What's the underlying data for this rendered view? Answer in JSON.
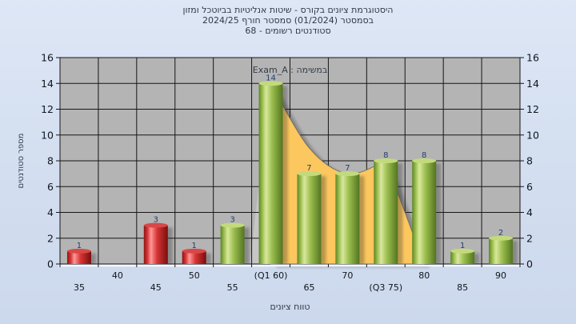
{
  "chart_data": {
    "type": "bar",
    "title_lines": [
      "היסטוגרמת ציונים בקורס - שיטות אנליטיות בביוטכל ומזון",
      "בסמסטר (01/2024) סמסטר חורף 2024/25",
      "סטודנטים רשומים - 68"
    ],
    "legend": "במשימה : Exam_A",
    "legend_position": "top-center",
    "xlabel": "טווח ציונים",
    "ylabel": "מספר סטודנטים",
    "categories": [
      "35",
      "40",
      "45",
      "50",
      "55",
      "(Q1 60)",
      "65",
      "70",
      "(Q3 75)",
      "80",
      "85",
      "90"
    ],
    "series": [
      {
        "name": "Exam_A",
        "type": "column",
        "values": [
          1,
          0,
          3,
          1,
          3,
          14,
          7,
          7,
          8,
          8,
          1,
          2
        ],
        "bar_colors": [
          "red",
          "red",
          "red",
          "red",
          "green",
          "green",
          "green",
          "green",
          "green",
          "green",
          "green",
          "green"
        ]
      },
      {
        "name": "distribution-area",
        "type": "area",
        "points_x": [
          5,
          6,
          7,
          8,
          9
        ],
        "points_y": [
          14,
          9,
          7,
          8,
          0
        ],
        "flank": {
          "x": 4.45,
          "y": 0
        }
      }
    ],
    "ylim": [
      0,
      16
    ],
    "y_tick_step": 2,
    "y_ticks": [
      0,
      2,
      4,
      6,
      8,
      10,
      12,
      14,
      16
    ],
    "grid": true,
    "registered_students": 68
  },
  "colors": {
    "plot_bg": "#b4b4b4",
    "plot_flank": "#c6c6c6",
    "grid": "#161616",
    "area_fill": "#fcc75e",
    "area_edge": "#6f6f6f",
    "shadow": "rgba(45,45,45,0.32)",
    "bar_red_dark": "#8f1212",
    "bar_red_main": "#d73535",
    "bar_red_light": "#ff9898",
    "bar_red_deep": "#7a0d0d",
    "bar_red_top": "#d84848",
    "bar_green_dark": "#5d8526",
    "bar_green_main": "#9cbf4f",
    "bar_green_light": "#d9e89e",
    "bar_green_deep": "#527420",
    "bar_green_top": "#c3da7c",
    "label_color": "#23406f",
    "axis_text": "#10161e",
    "legend_text": "#363d49",
    "bevel": "#f5f8fd"
  }
}
